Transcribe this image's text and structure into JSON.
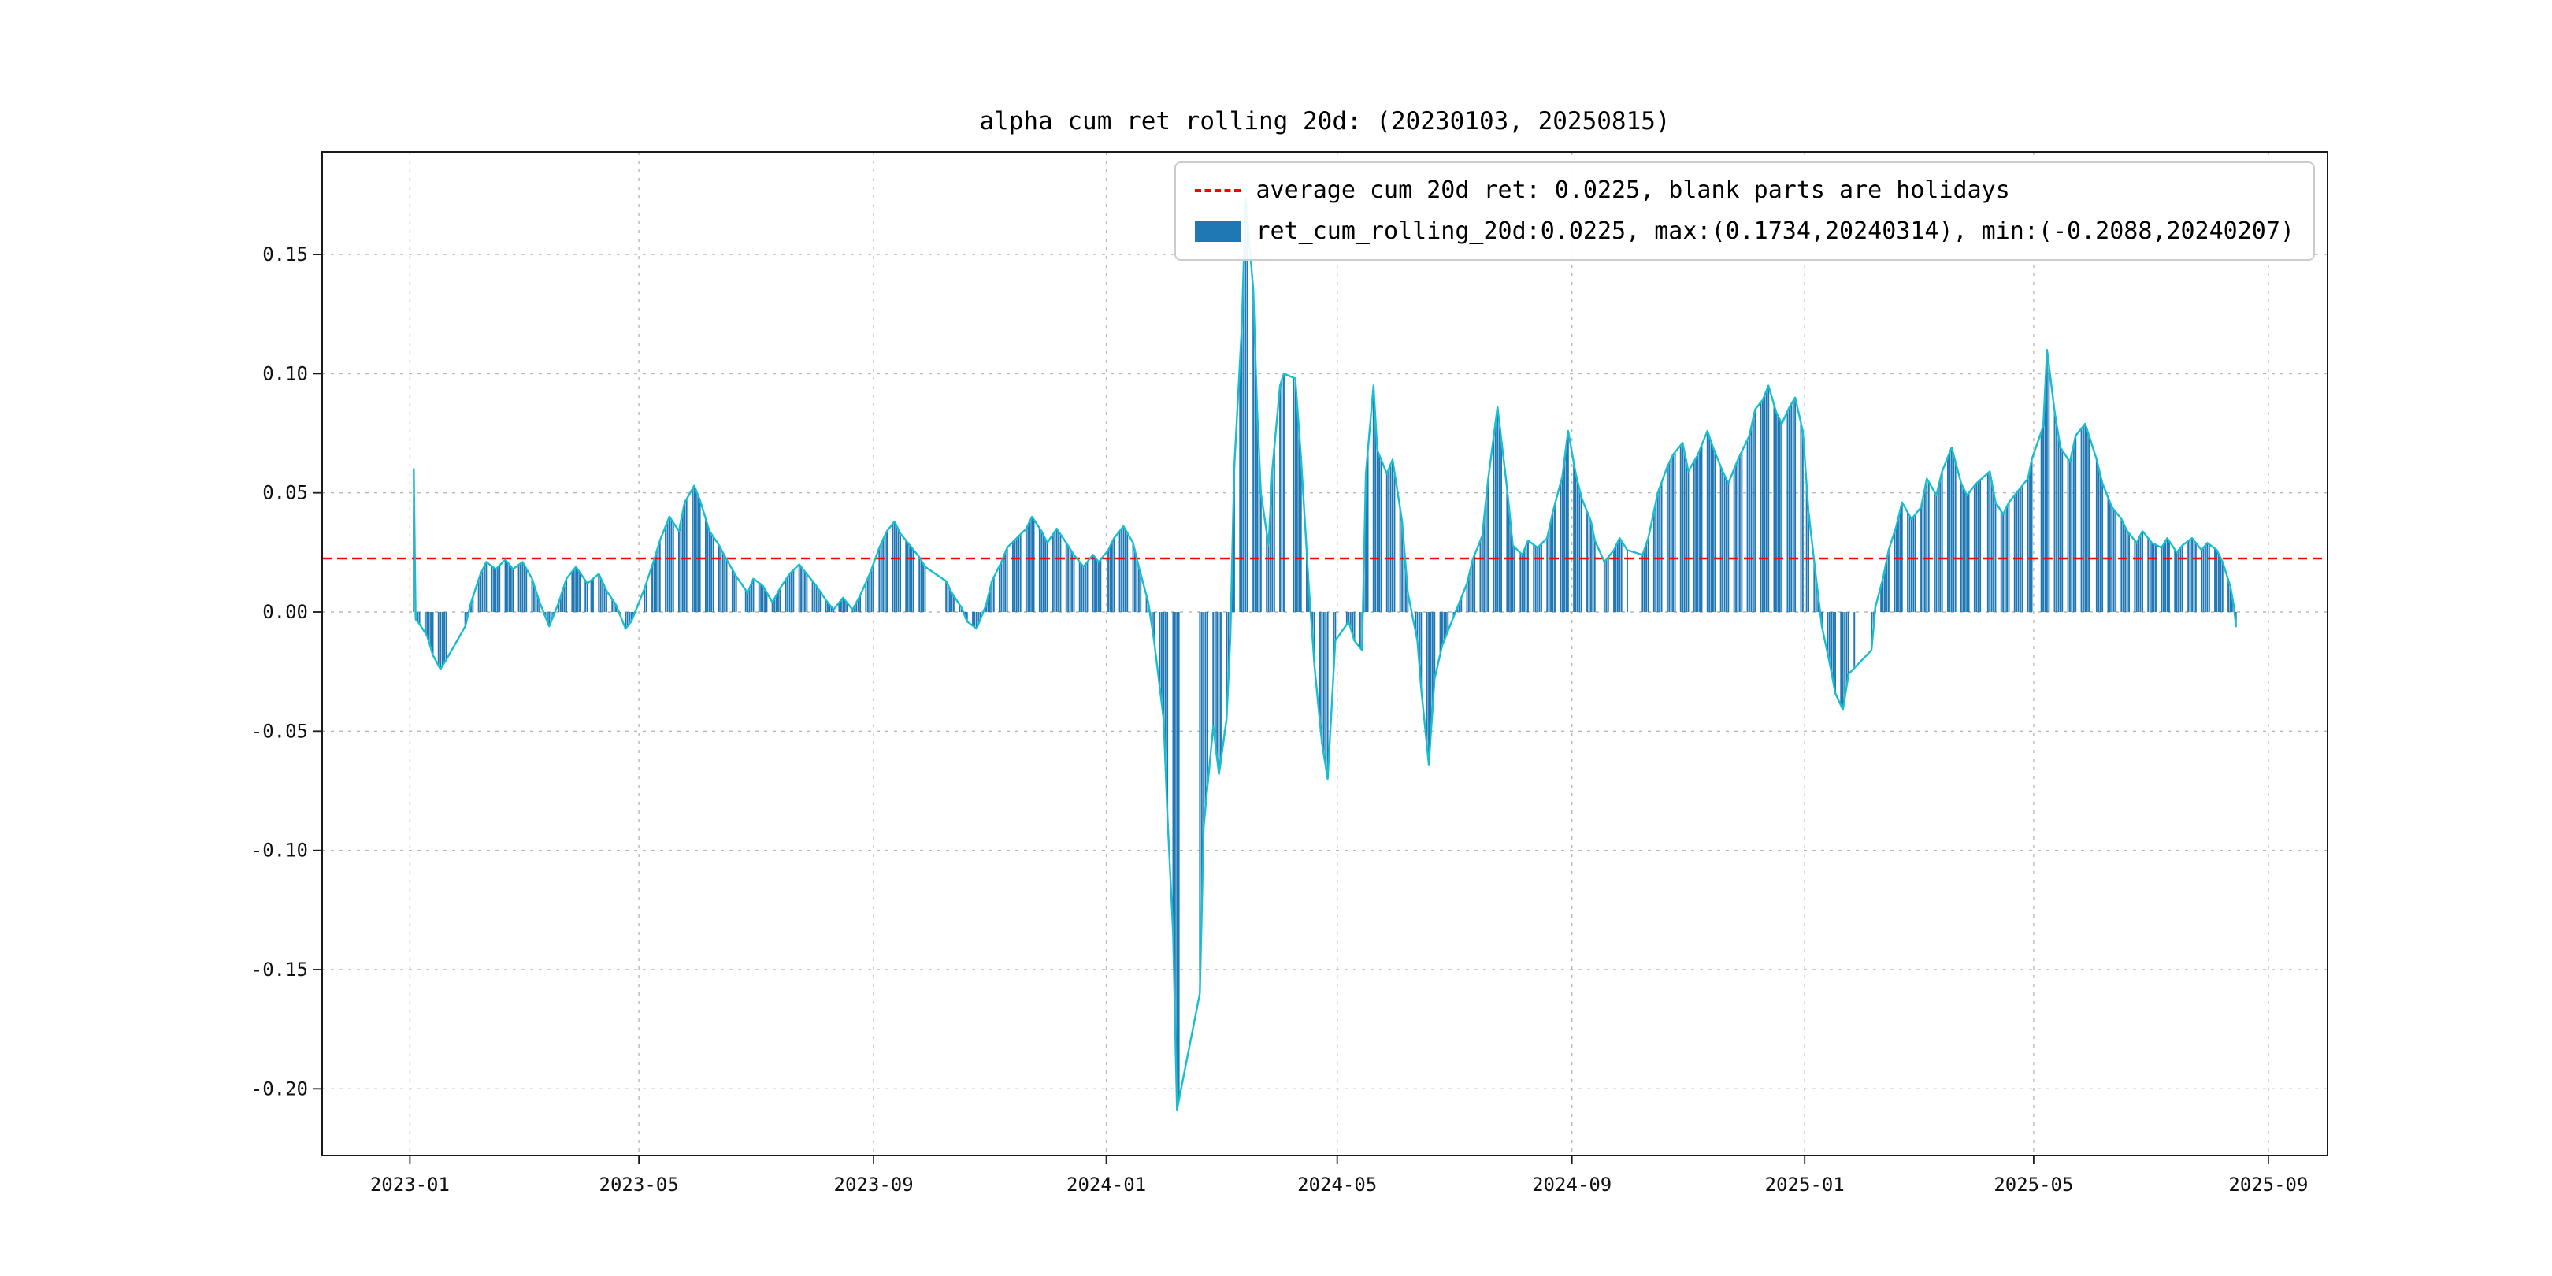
{
  "figure": {
    "title": "alpha cum ret rolling 20d: (20230103, 20250815)"
  },
  "legend": {
    "position": "upper right",
    "entries": [
      {
        "swatch": "dashed-line",
        "color": "#ff0000",
        "label": "average cum 20d ret: 0.0225, blank parts are holidays"
      },
      {
        "swatch": "bar",
        "color": "#1f77b4",
        "label": "ret_cum_rolling_20d:0.0225, max:(0.1734,20240314), min:(-0.2088,20240207)"
      }
    ]
  },
  "chart_data": {
    "type": "bar",
    "line_overlay": true,
    "title": "alpha cum ret rolling 20d: (20230103, 20250815)",
    "xlabel": "",
    "ylabel": "",
    "average_line": 0.0225,
    "max": {
      "value": 0.1734,
      "date": "20240314"
    },
    "min": {
      "value": -0.2088,
      "date": "20240207"
    },
    "date_range": [
      "20230103",
      "20250815"
    ],
    "xlim": [
      "2022-11-16",
      "2025-10-02"
    ],
    "ylim": [
      -0.228,
      0.193
    ],
    "x_ticks": [
      "2023-01",
      "2023-05",
      "2023-09",
      "2024-01",
      "2024-05",
      "2024-09",
      "2025-01",
      "2025-05",
      "2025-09"
    ],
    "y_ticks": [
      -0.2,
      -0.15,
      -0.1,
      -0.05,
      0.0,
      0.05,
      0.1,
      0.15
    ],
    "grid": true,
    "colors": {
      "bar": "#1f77b4",
      "line": "#17becf",
      "average": "#ff0000",
      "grid": "#b8b8b8"
    },
    "holiday_gaps": [
      [
        "2023-01-23",
        "2023-01-27"
      ],
      [
        "2023-04-05",
        "2023-04-05"
      ],
      [
        "2023-05-01",
        "2023-05-03"
      ],
      [
        "2023-06-22",
        "2023-06-23"
      ],
      [
        "2023-09-29",
        "2023-09-29"
      ],
      [
        "2023-10-02",
        "2023-10-06"
      ],
      [
        "2024-01-01",
        "2024-01-01"
      ],
      [
        "2024-02-09",
        "2024-02-16"
      ],
      [
        "2024-04-04",
        "2024-04-05"
      ],
      [
        "2024-05-01",
        "2024-05-03"
      ],
      [
        "2024-06-10",
        "2024-06-10"
      ],
      [
        "2024-09-16",
        "2024-09-17"
      ],
      [
        "2024-10-01",
        "2024-10-07"
      ],
      [
        "2025-01-01",
        "2025-01-01"
      ],
      [
        "2025-01-28",
        "2025-02-04"
      ],
      [
        "2025-04-04",
        "2025-04-04"
      ],
      [
        "2025-05-01",
        "2025-05-02"
      ],
      [
        "2025-06-02",
        "2025-06-02"
      ]
    ],
    "series_anchors": [
      [
        "2023-01-03",
        0.06
      ],
      [
        "2023-01-04",
        -0.003
      ],
      [
        "2023-01-06",
        -0.005
      ],
      [
        "2023-01-10",
        -0.01
      ],
      [
        "2023-01-13",
        -0.018
      ],
      [
        "2023-01-17",
        -0.024
      ],
      [
        "2023-01-20",
        -0.02
      ],
      [
        "2023-01-30",
        -0.006
      ],
      [
        "2023-02-02",
        0.004
      ],
      [
        "2023-02-07",
        0.016
      ],
      [
        "2023-02-10",
        0.021
      ],
      [
        "2023-02-15",
        0.018
      ],
      [
        "2023-02-20",
        0.022
      ],
      [
        "2023-02-24",
        0.018
      ],
      [
        "2023-03-01",
        0.021
      ],
      [
        "2023-03-06",
        0.014
      ],
      [
        "2023-03-10",
        0.004
      ],
      [
        "2023-03-15",
        -0.006
      ],
      [
        "2023-03-20",
        0.004
      ],
      [
        "2023-03-24",
        0.014
      ],
      [
        "2023-03-29",
        0.019
      ],
      [
        "2023-04-04",
        0.012
      ],
      [
        "2023-04-10",
        0.016
      ],
      [
        "2023-04-14",
        0.009
      ],
      [
        "2023-04-19",
        0.003
      ],
      [
        "2023-04-24",
        -0.007
      ],
      [
        "2023-04-27",
        -0.004
      ],
      [
        "2023-05-04",
        0.01
      ],
      [
        "2023-05-09",
        0.022
      ],
      [
        "2023-05-12",
        0.03
      ],
      [
        "2023-05-17",
        0.04
      ],
      [
        "2023-05-22",
        0.034
      ],
      [
        "2023-05-25",
        0.046
      ],
      [
        "2023-05-30",
        0.053
      ],
      [
        "2023-06-02",
        0.047
      ],
      [
        "2023-06-07",
        0.034
      ],
      [
        "2023-06-12",
        0.028
      ],
      [
        "2023-06-16",
        0.022
      ],
      [
        "2023-06-21",
        0.015
      ],
      [
        "2023-06-27",
        0.008
      ],
      [
        "2023-06-30",
        0.014
      ],
      [
        "2023-07-05",
        0.011
      ],
      [
        "2023-07-10",
        0.004
      ],
      [
        "2023-07-14",
        0.01
      ],
      [
        "2023-07-19",
        0.016
      ],
      [
        "2023-07-24",
        0.02
      ],
      [
        "2023-07-28",
        0.016
      ],
      [
        "2023-08-02",
        0.011
      ],
      [
        "2023-08-07",
        0.005
      ],
      [
        "2023-08-11",
        0.001
      ],
      [
        "2023-08-16",
        0.006
      ],
      [
        "2023-08-21",
        0.001
      ],
      [
        "2023-08-25",
        0.007
      ],
      [
        "2023-08-30",
        0.016
      ],
      [
        "2023-09-04",
        0.027
      ],
      [
        "2023-09-08",
        0.034
      ],
      [
        "2023-09-12",
        0.038
      ],
      [
        "2023-09-15",
        0.033
      ],
      [
        "2023-09-20",
        0.028
      ],
      [
        "2023-09-25",
        0.023
      ],
      [
        "2023-09-28",
        0.019
      ],
      [
        "2023-10-09",
        0.013
      ],
      [
        "2023-10-12",
        0.008
      ],
      [
        "2023-10-17",
        0.002
      ],
      [
        "2023-10-20",
        -0.004
      ],
      [
        "2023-10-25",
        -0.007
      ],
      [
        "2023-10-30",
        0.003
      ],
      [
        "2023-11-02",
        0.013
      ],
      [
        "2023-11-07",
        0.021
      ],
      [
        "2023-11-10",
        0.027
      ],
      [
        "2023-11-15",
        0.031
      ],
      [
        "2023-11-20",
        0.035
      ],
      [
        "2023-11-23",
        0.04
      ],
      [
        "2023-11-28",
        0.034
      ],
      [
        "2023-12-01",
        0.029
      ],
      [
        "2023-12-06",
        0.035
      ],
      [
        "2023-12-11",
        0.029
      ],
      [
        "2023-12-15",
        0.024
      ],
      [
        "2023-12-20",
        0.019
      ],
      [
        "2023-12-25",
        0.024
      ],
      [
        "2023-12-28",
        0.021
      ],
      [
        "2024-01-02",
        0.026
      ],
      [
        "2024-01-05",
        0.031
      ],
      [
        "2024-01-10",
        0.036
      ],
      [
        "2024-01-15",
        0.029
      ],
      [
        "2024-01-18",
        0.019
      ],
      [
        "2024-01-23",
        0.004
      ],
      [
        "2024-01-26",
        -0.012
      ],
      [
        "2024-01-31",
        -0.045
      ],
      [
        "2024-02-02",
        -0.085
      ],
      [
        "2024-02-05",
        -0.135
      ],
      [
        "2024-02-07",
        -0.2088
      ],
      [
        "2024-02-19",
        -0.16
      ],
      [
        "2024-02-21",
        -0.09
      ],
      [
        "2024-02-26",
        -0.048
      ],
      [
        "2024-02-29",
        -0.068
      ],
      [
        "2024-03-04",
        -0.045
      ],
      [
        "2024-03-06",
        -0.01
      ],
      [
        "2024-03-08",
        0.06
      ],
      [
        "2024-03-12",
        0.12
      ],
      [
        "2024-03-14",
        0.1734
      ],
      [
        "2024-03-18",
        0.135
      ],
      [
        "2024-03-20",
        0.085
      ],
      [
        "2024-03-22",
        0.05
      ],
      [
        "2024-03-26",
        0.028
      ],
      [
        "2024-03-28",
        0.06
      ],
      [
        "2024-04-01",
        0.095
      ],
      [
        "2024-04-03",
        0.1
      ],
      [
        "2024-04-09",
        0.098
      ],
      [
        "2024-04-12",
        0.065
      ],
      [
        "2024-04-16",
        0.012
      ],
      [
        "2024-04-19",
        -0.022
      ],
      [
        "2024-04-23",
        -0.055
      ],
      [
        "2024-04-26",
        -0.07
      ],
      [
        "2024-04-30",
        -0.012
      ],
      [
        "2024-05-07",
        -0.004
      ],
      [
        "2024-05-10",
        -0.012
      ],
      [
        "2024-05-14",
        -0.016
      ],
      [
        "2024-05-16",
        0.058
      ],
      [
        "2024-05-20",
        0.095
      ],
      [
        "2024-05-22",
        0.068
      ],
      [
        "2024-05-27",
        0.058
      ],
      [
        "2024-05-30",
        0.064
      ],
      [
        "2024-06-04",
        0.038
      ],
      [
        "2024-06-07",
        0.008
      ],
      [
        "2024-06-12",
        -0.012
      ],
      [
        "2024-06-14",
        -0.032
      ],
      [
        "2024-06-18",
        -0.064
      ],
      [
        "2024-06-21",
        -0.028
      ],
      [
        "2024-06-25",
        -0.014
      ],
      [
        "2024-06-28",
        -0.008
      ],
      [
        "2024-07-03",
        0.002
      ],
      [
        "2024-07-08",
        0.012
      ],
      [
        "2024-07-11",
        0.022
      ],
      [
        "2024-07-16",
        0.032
      ],
      [
        "2024-07-19",
        0.055
      ],
      [
        "2024-07-24",
        0.086
      ],
      [
        "2024-07-29",
        0.052
      ],
      [
        "2024-08-01",
        0.028
      ],
      [
        "2024-08-06",
        0.024
      ],
      [
        "2024-08-09",
        0.03
      ],
      [
        "2024-08-14",
        0.027
      ],
      [
        "2024-08-19",
        0.031
      ],
      [
        "2024-08-22",
        0.042
      ],
      [
        "2024-08-27",
        0.057
      ],
      [
        "2024-08-30",
        0.076
      ],
      [
        "2024-09-03",
        0.058
      ],
      [
        "2024-09-06",
        0.048
      ],
      [
        "2024-09-11",
        0.038
      ],
      [
        "2024-09-13",
        0.03
      ],
      [
        "2024-09-18",
        0.021
      ],
      [
        "2024-09-23",
        0.026
      ],
      [
        "2024-09-26",
        0.031
      ],
      [
        "2024-09-30",
        0.026
      ],
      [
        "2024-10-08",
        0.024
      ],
      [
        "2024-10-11",
        0.031
      ],
      [
        "2024-10-16",
        0.05
      ],
      [
        "2024-10-21",
        0.061
      ],
      [
        "2024-10-24",
        0.066
      ],
      [
        "2024-10-29",
        0.071
      ],
      [
        "2024-11-01",
        0.059
      ],
      [
        "2024-11-06",
        0.066
      ],
      [
        "2024-11-11",
        0.076
      ],
      [
        "2024-11-14",
        0.069
      ],
      [
        "2024-11-19",
        0.059
      ],
      [
        "2024-11-22",
        0.054
      ],
      [
        "2024-11-27",
        0.064
      ],
      [
        "2024-12-03",
        0.074
      ],
      [
        "2024-12-06",
        0.085
      ],
      [
        "2024-12-10",
        0.089
      ],
      [
        "2024-12-13",
        0.095
      ],
      [
        "2024-12-17",
        0.084
      ],
      [
        "2024-12-20",
        0.079
      ],
      [
        "2024-12-24",
        0.086
      ],
      [
        "2024-12-27",
        0.09
      ],
      [
        "2024-12-31",
        0.076
      ],
      [
        "2025-01-03",
        0.042
      ],
      [
        "2025-01-07",
        0.014
      ],
      [
        "2025-01-10",
        -0.006
      ],
      [
        "2025-01-14",
        -0.021
      ],
      [
        "2025-01-17",
        -0.034
      ],
      [
        "2025-01-21",
        -0.041
      ],
      [
        "2025-01-24",
        -0.026
      ],
      [
        "2025-02-05",
        -0.016
      ],
      [
        "2025-02-07",
        0.002
      ],
      [
        "2025-02-11",
        0.014
      ],
      [
        "2025-02-14",
        0.026
      ],
      [
        "2025-02-18",
        0.036
      ],
      [
        "2025-02-21",
        0.046
      ],
      [
        "2025-02-26",
        0.039
      ],
      [
        "2025-03-03",
        0.044
      ],
      [
        "2025-03-06",
        0.056
      ],
      [
        "2025-03-11",
        0.049
      ],
      [
        "2025-03-14",
        0.059
      ],
      [
        "2025-03-19",
        0.069
      ],
      [
        "2025-03-24",
        0.054
      ],
      [
        "2025-03-27",
        0.049
      ],
      [
        "2025-04-01",
        0.054
      ],
      [
        "2025-04-08",
        0.059
      ],
      [
        "2025-04-11",
        0.046
      ],
      [
        "2025-04-15",
        0.041
      ],
      [
        "2025-04-18",
        0.046
      ],
      [
        "2025-04-23",
        0.051
      ],
      [
        "2025-04-28",
        0.056
      ],
      [
        "2025-04-30",
        0.064
      ],
      [
        "2025-05-06",
        0.078
      ],
      [
        "2025-05-08",
        0.11
      ],
      [
        "2025-05-12",
        0.084
      ],
      [
        "2025-05-15",
        0.069
      ],
      [
        "2025-05-20",
        0.063
      ],
      [
        "2025-05-23",
        0.074
      ],
      [
        "2025-05-28",
        0.079
      ],
      [
        "2025-06-03",
        0.064
      ],
      [
        "2025-06-06",
        0.054
      ],
      [
        "2025-06-11",
        0.044
      ],
      [
        "2025-06-16",
        0.039
      ],
      [
        "2025-06-19",
        0.034
      ],
      [
        "2025-06-24",
        0.029
      ],
      [
        "2025-06-27",
        0.034
      ],
      [
        "2025-07-02",
        0.029
      ],
      [
        "2025-07-07",
        0.027
      ],
      [
        "2025-07-10",
        0.031
      ],
      [
        "2025-07-15",
        0.025
      ],
      [
        "2025-07-18",
        0.028
      ],
      [
        "2025-07-23",
        0.031
      ],
      [
        "2025-07-28",
        0.026
      ],
      [
        "2025-07-31",
        0.029
      ],
      [
        "2025-08-05",
        0.026
      ],
      [
        "2025-08-08",
        0.021
      ],
      [
        "2025-08-12",
        0.011
      ],
      [
        "2025-08-14",
        0.002
      ],
      [
        "2025-08-15",
        -0.006
      ]
    ]
  }
}
